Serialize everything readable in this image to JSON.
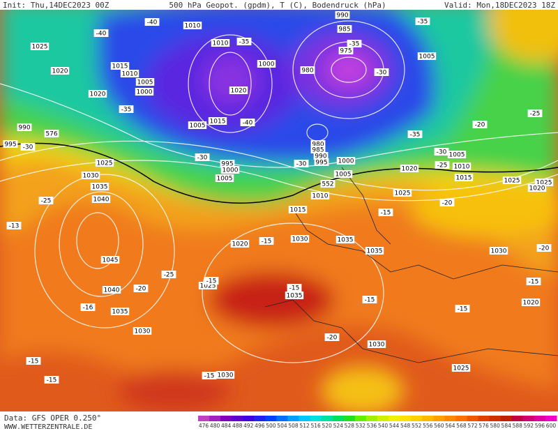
{
  "header": {
    "init": "Init: Thu,14DEC2023 00Z",
    "title": "500 hPa Geopot. (gpdm), T (C), Bodendruck (hPa)",
    "valid": "Valid: Mon,18DEC2023 18Z"
  },
  "footer": {
    "data": "Data: GFS OPER 0.250°",
    "site": "WWW.WETTERZENTRALE.DE"
  },
  "colorbar": {
    "labels": [
      476,
      480,
      484,
      488,
      492,
      496,
      500,
      504,
      508,
      512,
      516,
      520,
      524,
      528,
      532,
      536,
      540,
      544,
      548,
      552,
      556,
      560,
      564,
      568,
      572,
      576,
      580,
      584,
      588,
      592,
      596,
      600
    ],
    "colors": [
      "#c040c0",
      "#a020c0",
      "#8000c0",
      "#6000d0",
      "#4000e0",
      "#2020f0",
      "#0040ff",
      "#0070ff",
      "#00a0ff",
      "#00c8ff",
      "#00e0e0",
      "#00e0a0",
      "#00e060",
      "#20e020",
      "#60f000",
      "#a0f000",
      "#d0f000",
      "#f0f000",
      "#ffe000",
      "#ffd000",
      "#ffb800",
      "#ffa000",
      "#ff8800",
      "#ff7000",
      "#f05800",
      "#e04000",
      "#d03000",
      "#c02000",
      "#c00040",
      "#d00070",
      "#e000a0",
      "#f000c8"
    ]
  },
  "map": {
    "labels": [
      "1025",
      "1020",
      "1020",
      "-40",
      "1010",
      "-40",
      "1010",
      "-35",
      "990",
      "985",
      "975",
      "-35",
      "980",
      "-30",
      "1005",
      "-35",
      "1015",
      "1010",
      "1005",
      "1000",
      "1000",
      "1020",
      "-35",
      "990",
      "995",
      "-30",
      "1005",
      "1015",
      "-40",
      "980",
      "985",
      "990",
      "995",
      "-30",
      "-35",
      "1005",
      "1000",
      "995",
      "1000",
      "1005",
      "-30",
      "-20",
      "-25",
      "-30",
      "1005",
      "1010",
      "1015",
      "1020",
      "1025",
      "-25",
      "1025",
      "1025",
      "1020",
      "1025",
      "1030",
      "1035",
      "1040",
      "-25",
      "-13",
      "1045",
      "1040",
      "-20",
      "-16",
      "1035",
      "1030",
      "-25",
      "1025",
      "-15",
      "1020",
      "-15",
      "1030",
      "1035",
      "1035",
      "-15",
      "1035",
      "-15",
      "-20",
      "1030",
      "1030",
      "-20",
      "-15",
      "-20",
      "-15",
      "1020",
      "-15",
      "1025",
      "-15",
      "-15",
      "1030",
      "-15",
      "1015",
      "1010",
      "552",
      "576"
    ]
  }
}
